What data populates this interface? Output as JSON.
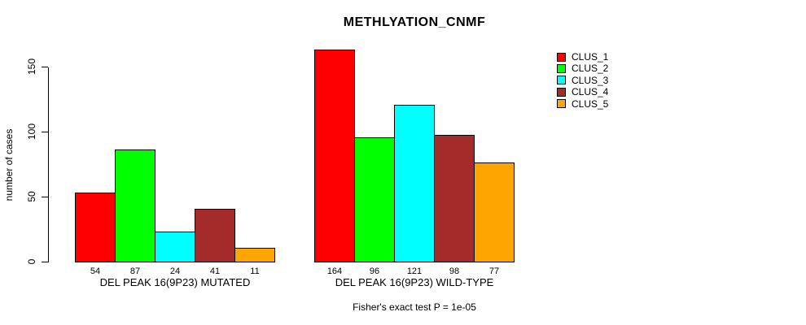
{
  "title": "METHLYATION_CNMF",
  "y_axis": {
    "label": "number of cases",
    "ticks": [
      0,
      50,
      100,
      150
    ]
  },
  "footer": "Fisher's exact test P = 1e-05",
  "legend": {
    "position": "right",
    "items": [
      {
        "label": "CLUS_1",
        "color": "#FF0000"
      },
      {
        "label": "CLUS_2",
        "color": "#00FF00"
      },
      {
        "label": "CLUS_3",
        "color": "#00FFFF"
      },
      {
        "label": "CLUS_4",
        "color": "#A52A2A"
      },
      {
        "label": "CLUS_5",
        "color": "#FFA500"
      }
    ]
  },
  "chart_data": {
    "type": "bar",
    "title": "METHLYATION_CNMF",
    "ylabel": "number of cases",
    "xlabel": "",
    "ylim": [
      0,
      165
    ],
    "yticks": [
      0,
      50,
      100,
      150
    ],
    "grid": false,
    "legend_position": "right",
    "categories": [
      "DEL PEAK 16(9P23) MUTATED",
      "DEL PEAK 16(9P23) WILD-TYPE"
    ],
    "series": [
      {
        "name": "CLUS_1",
        "color": "#FF0000",
        "values": [
          54,
          164
        ]
      },
      {
        "name": "CLUS_2",
        "color": "#00FF00",
        "values": [
          87,
          96
        ]
      },
      {
        "name": "CLUS_3",
        "color": "#00FFFF",
        "values": [
          24,
          121
        ]
      },
      {
        "name": "CLUS_4",
        "color": "#A52A2A",
        "values": [
          41,
          98
        ]
      },
      {
        "name": "CLUS_5",
        "color": "#FFA500",
        "values": [
          11,
          77
        ]
      }
    ],
    "bar_value_labels": [
      [
        54,
        87,
        24,
        41,
        11
      ],
      [
        164,
        96,
        121,
        98,
        77
      ]
    ],
    "annotation": "Fisher's exact test P = 1e-05"
  }
}
